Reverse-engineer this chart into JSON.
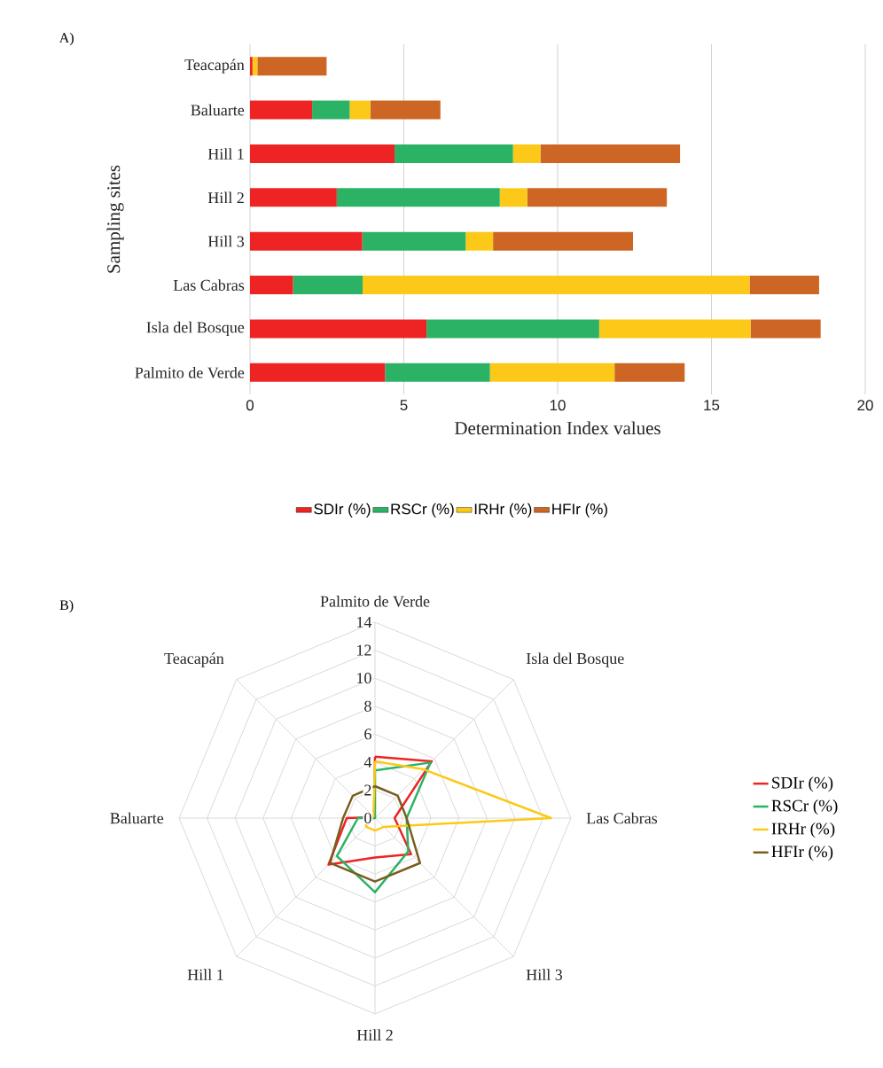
{
  "chart_data": [
    {
      "type": "bar",
      "orientation": "horizontal",
      "stacked": true,
      "title": "A)",
      "xlabel": "Determination Index values",
      "ylabel": "Sampling sites",
      "categories": [
        "Teacapán",
        "Baluarte",
        "Hill 1",
        "Hill 2",
        "Hill 3",
        "Las Cabras",
        "Isla del Bosque",
        "Palmito de Verde"
      ],
      "series": [
        {
          "name": "SDIr (%)",
          "color": "#ee2424",
          "values": [
            0.08,
            2.02,
            4.7,
            2.82,
            3.65,
            1.4,
            5.74,
            4.39
          ]
        },
        {
          "name": "RSCr (%)",
          "color": "#2bb265",
          "values": [
            0,
            1.22,
            3.85,
            5.3,
            3.36,
            2.26,
            5.61,
            3.41
          ]
        },
        {
          "name": "IRHr (%)",
          "color": "#fcc918",
          "values": [
            0.16,
            0.67,
            0.89,
            0.89,
            0.89,
            12.58,
            4.92,
            4.05
          ]
        },
        {
          "name": "HFIr (%)",
          "color": "#cd6625",
          "values": [
            2.25,
            2.28,
            4.54,
            4.54,
            4.55,
            2.26,
            2.28,
            2.28
          ]
        }
      ],
      "xlim": [
        0,
        20
      ],
      "xticks": [
        0,
        5,
        10,
        15,
        20
      ],
      "grid": "x",
      "legend": "bottom"
    },
    {
      "type": "radar",
      "title": "B)",
      "categories": [
        "Palmito de Verde",
        "Isla del Bosque",
        "Las Cabras",
        "Hill 3",
        "Hill 2",
        "Hill 1",
        "Baluarte",
        "Teacapán"
      ],
      "series": [
        {
          "name": "SDIr (%)",
          "color": "#ee2424",
          "values": [
            4.39,
            5.74,
            1.4,
            3.65,
            2.82,
            4.7,
            2.02,
            0.08
          ]
        },
        {
          "name": "RSCr (%)",
          "color": "#2bb265",
          "values": [
            3.41,
            5.61,
            2.26,
            3.36,
            5.3,
            3.85,
            1.22,
            0
          ]
        },
        {
          "name": "IRHr (%)",
          "color": "#fcc918",
          "values": [
            4.05,
            4.92,
            12.58,
            0.89,
            0.89,
            0.89,
            0.67,
            0.16
          ]
        },
        {
          "name": "HFIr (%)",
          "color": "#7a5c1e",
          "values": [
            2.28,
            2.28,
            2.26,
            4.55,
            4.54,
            4.54,
            2.28,
            2.25
          ]
        }
      ],
      "ylim": [
        0,
        14
      ],
      "yticks": [
        0,
        2,
        4,
        6,
        8,
        10,
        12,
        14
      ],
      "grid": true,
      "legend": "right"
    }
  ]
}
